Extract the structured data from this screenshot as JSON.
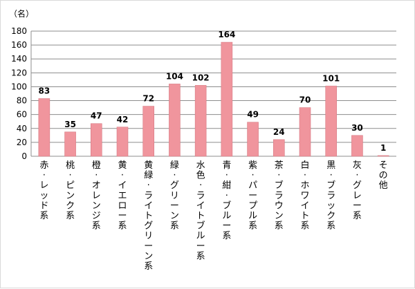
{
  "chart_data": {
    "type": "bar",
    "unit_label": "（名）",
    "categories": [
      "赤・レッド系",
      "桃・ピンク系",
      "橙・オレンジ系",
      "黄・イエロー系",
      "黄緑・ライトグリーン系",
      "緑・グリーン系",
      "水色・ライトブルー系",
      "青・紺・ブルー系",
      "紫・パープル系",
      "茶・ブラウン系",
      "白・ホワイト系",
      "黒・ブラック系",
      "灰・グレー系",
      "その他"
    ],
    "values": [
      83,
      35,
      47,
      42,
      72,
      104,
      102,
      164,
      49,
      24,
      70,
      101,
      30,
      1
    ],
    "ylim": [
      0,
      180
    ],
    "yticks": [
      0,
      20,
      40,
      60,
      80,
      100,
      120,
      140,
      160,
      180
    ],
    "grid": true,
    "bar_color": "#f0959d",
    "bar_border_color": "#d77a83"
  }
}
